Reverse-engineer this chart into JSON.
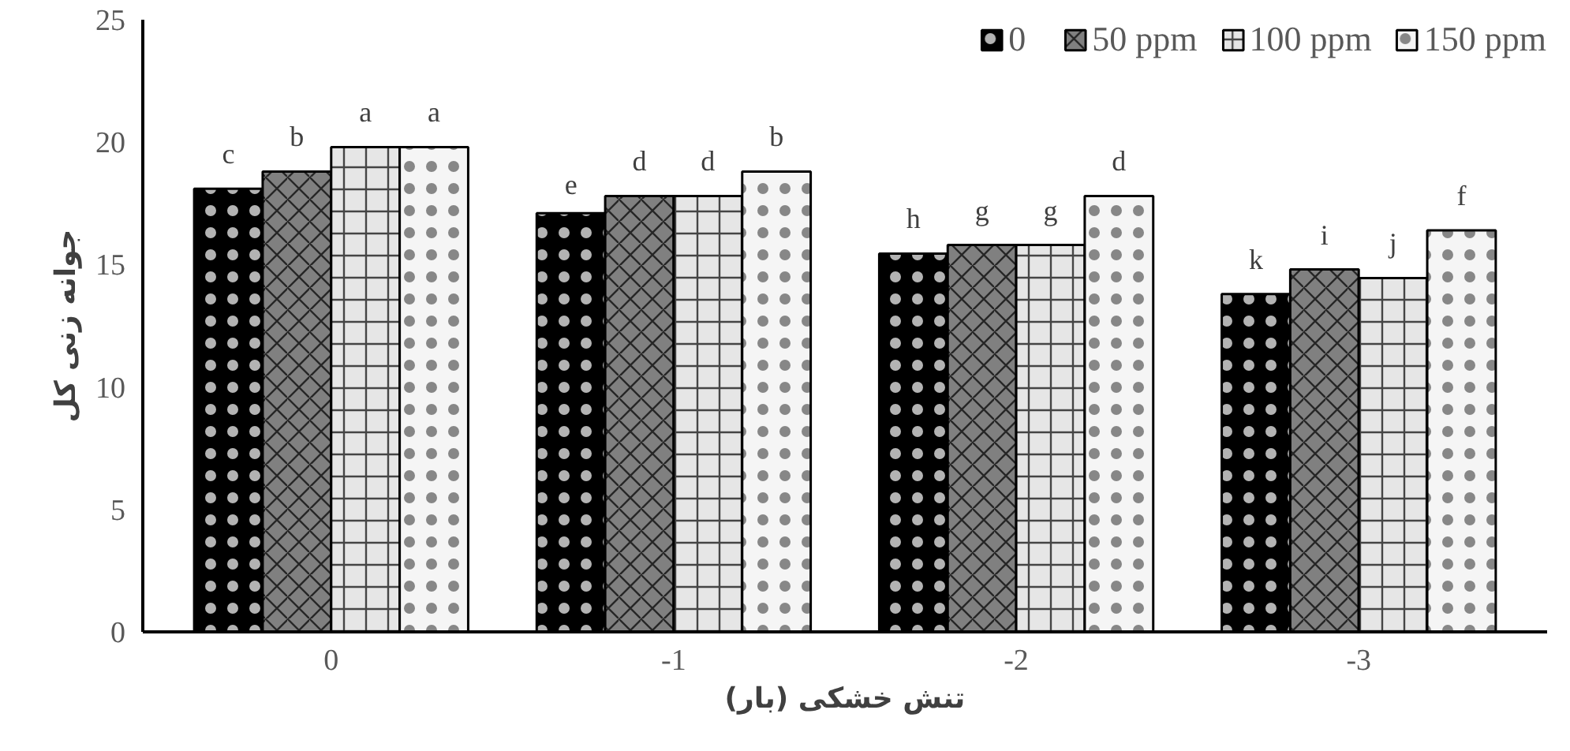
{
  "chart_data": {
    "type": "bar",
    "xlabel": "تنش خشکی (بار)",
    "ylabel": "جوانه زنی کل",
    "categories": [
      "0",
      "-1",
      "-2",
      "-3"
    ],
    "series": [
      {
        "name": "0",
        "color": "#000000",
        "values": [
          18.1,
          17.1,
          15.45,
          13.8
        ],
        "value_labels": [
          "c",
          "e",
          "h",
          "k"
        ]
      },
      {
        "name": "50 ppm",
        "color": "#808080",
        "values": [
          18.8,
          17.8,
          15.8,
          14.8
        ],
        "value_labels": [
          "b",
          "d",
          "g",
          "i"
        ]
      },
      {
        "name": "100 ppm",
        "color": "#e6e6e6",
        "values": [
          19.8,
          17.8,
          15.8,
          14.45
        ],
        "value_labels": [
          "a",
          "d",
          "g",
          "j"
        ]
      },
      {
        "name": "150 ppm",
        "color": "#f5f5f5",
        "values": [
          19.8,
          18.8,
          17.8,
          16.4
        ],
        "value_labels": [
          "a",
          "b",
          "d",
          "f"
        ]
      }
    ],
    "ylim": [
      0,
      25
    ],
    "yticks": [
      0,
      5,
      10,
      15,
      20,
      25
    ],
    "grid": false,
    "legend": "top right"
  }
}
